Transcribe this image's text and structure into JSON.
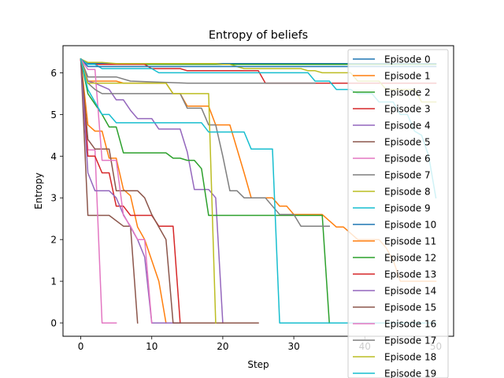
{
  "chart_data": {
    "type": "line",
    "title": "Entropy of beliefs",
    "xlabel": "Step",
    "ylabel": "Entropy",
    "xlim": [
      -2.5,
      52.5
    ],
    "ylim": [
      -0.32,
      6.65
    ],
    "xticks": [
      0,
      10,
      20,
      30,
      40,
      50
    ],
    "yticks": [
      0,
      1,
      2,
      3,
      4,
      5,
      6
    ],
    "grid": false,
    "legend_position": "right",
    "series": [
      {
        "name": "Episode 0",
        "color": "#1f77b4",
        "x": [
          0,
          1,
          50
        ],
        "y": [
          6.33,
          6.22,
          6.22
        ]
      },
      {
        "name": "Episode 1",
        "color": "#ff7f0e",
        "x": [
          0,
          1,
          5,
          6,
          12,
          13,
          14,
          15,
          16,
          17,
          18,
          19,
          20,
          21,
          23,
          24,
          26,
          27,
          28,
          29,
          30,
          31,
          33,
          34,
          36,
          37,
          39,
          40,
          41,
          42,
          43,
          44,
          45,
          46,
          47,
          48,
          49,
          50
        ],
        "y": [
          6.33,
          5.8,
          5.8,
          5.75,
          5.75,
          5.5,
          5.5,
          5.2,
          5.2,
          5.2,
          5.2,
          4.75,
          4.75,
          4.75,
          3.6,
          3.0,
          3.0,
          3.0,
          2.8,
          2.8,
          2.6,
          2.6,
          2.6,
          2.6,
          2.3,
          2.3,
          2.0,
          2.0,
          2.0,
          2.0,
          1.8,
          1.5,
          1.0,
          1.0,
          1.0,
          1.0,
          1.0,
          1.0
        ]
      },
      {
        "name": "Episode 2",
        "color": "#2ca02c",
        "x": [
          0,
          1,
          50
        ],
        "y": [
          6.33,
          6.2,
          6.2
        ]
      },
      {
        "name": "Episode 3",
        "color": "#d62728",
        "x": [
          0,
          1,
          9,
          10,
          14,
          15,
          16,
          17,
          18,
          19,
          20,
          21,
          22,
          23,
          24,
          25,
          26,
          27,
          28,
          50
        ],
        "y": [
          6.33,
          6.2,
          6.2,
          6.1,
          6.1,
          6.05,
          6.05,
          6.05,
          6.05,
          6.05,
          6.05,
          6.05,
          6.05,
          6.05,
          6.05,
          6.05,
          5.75,
          5.75,
          5.75,
          5.75
        ]
      },
      {
        "name": "Episode 4",
        "color": "#9467bd",
        "x": [
          0,
          1,
          2,
          4,
          5,
          6,
          7,
          8,
          9,
          10,
          11,
          14,
          15,
          16,
          17,
          18,
          19,
          20
        ],
        "y": [
          6.33,
          5.8,
          5.75,
          5.6,
          5.35,
          5.35,
          5.1,
          4.9,
          4.9,
          4.9,
          4.65,
          4.65,
          4.1,
          3.2,
          3.2,
          3.2,
          3.0,
          0.0
        ]
      },
      {
        "name": "Episode 5",
        "color": "#8c564b",
        "x": [
          0,
          1,
          4,
          6,
          7,
          8
        ],
        "y": [
          6.33,
          2.58,
          2.58,
          2.32,
          2.32,
          0.0
        ]
      },
      {
        "name": "Episode 6",
        "color": "#e377c2",
        "x": [
          0,
          1,
          2,
          3,
          4,
          5
        ],
        "y": [
          6.33,
          4.15,
          4.15,
          0.0,
          0.0,
          0.0
        ]
      },
      {
        "name": "Episode 7",
        "color": "#7f7f7f",
        "x": [
          0,
          1,
          3,
          5,
          7,
          15,
          16,
          17,
          18,
          19,
          20,
          21,
          22,
          23,
          24,
          25,
          26,
          27,
          28,
          29,
          30,
          31,
          32,
          33
        ],
        "y": [
          6.33,
          5.9,
          5.9,
          5.9,
          5.8,
          5.75,
          5.75,
          5.75,
          5.75,
          5.75,
          5.75,
          5.75,
          5.75,
          5.75,
          5.75,
          5.75,
          5.75,
          5.75,
          5.75,
          5.75,
          5.75,
          5.75,
          5.75,
          5.75
        ]
      },
      {
        "name": "Episode 8",
        "color": "#bcbd22",
        "x": [
          0,
          1,
          3,
          5,
          10,
          15,
          18,
          19,
          20,
          21,
          22,
          23,
          24,
          25,
          26,
          27,
          28,
          29,
          30,
          31,
          32,
          33,
          34,
          35,
          36,
          37,
          38,
          39,
          40,
          41,
          42,
          43,
          44,
          45,
          46,
          47,
          48,
          49,
          50
        ],
        "y": [
          6.33,
          6.25,
          6.25,
          6.22,
          6.22,
          6.22,
          6.22,
          6.22,
          6.2,
          6.2,
          6.15,
          6.1,
          6.1,
          6.1,
          6.1,
          6.1,
          6.1,
          6.1,
          6.1,
          6.1,
          6.05,
          6.05,
          6.0,
          6.0,
          6.0,
          6.0,
          6.0,
          5.8,
          5.8,
          5.8,
          5.8,
          5.6,
          5.6,
          5.6,
          5.6,
          5.6,
          5.3,
          5.3,
          5.3
        ]
      },
      {
        "name": "Episode 9",
        "color": "#17becf",
        "x": [
          0,
          1,
          2,
          3,
          4,
          5,
          6,
          7,
          8,
          9,
          10,
          11,
          12,
          13,
          14,
          15,
          16,
          17,
          18,
          19,
          20,
          21,
          22,
          23,
          24,
          25,
          26,
          27,
          28,
          29,
          30,
          31,
          32,
          33,
          34,
          35,
          36,
          37,
          38,
          39,
          40,
          41,
          42,
          43,
          44,
          45,
          46,
          47,
          48,
          49,
          50
        ],
        "y": [
          6.33,
          6.2,
          6.2,
          6.1,
          6.1,
          6.1,
          6.1,
          6.1,
          6.1,
          6.1,
          6.1,
          6.0,
          6.0,
          6.0,
          6.0,
          6.0,
          6.0,
          6.0,
          6.0,
          6.0,
          6.0,
          6.0,
          6.0,
          6.0,
          6.0,
          6.0,
          6.0,
          6.0,
          6.0,
          6.0,
          6.0,
          6.0,
          6.0,
          5.8,
          5.8,
          5.8,
          5.6,
          5.6,
          5.6,
          5.5,
          5.5,
          5.5,
          5.3,
          5.3,
          5.3,
          5.0,
          5.0,
          4.6,
          4.5,
          4.0,
          3.0
        ]
      },
      {
        "name": "Episode 10",
        "color": "#1f77b4",
        "x": [
          0,
          1,
          50
        ],
        "y": [
          6.33,
          6.15,
          6.15
        ]
      },
      {
        "name": "Episode 11",
        "color": "#ff7f0e",
        "x": [
          0,
          1,
          2,
          3,
          4,
          5,
          6,
          7,
          8,
          9,
          10,
          11,
          12
        ],
        "y": [
          6.33,
          4.75,
          4.6,
          4.6,
          3.95,
          3.95,
          3.2,
          3.05,
          2.3,
          2.0,
          1.5,
          1.0,
          0.0
        ]
      },
      {
        "name": "Episode 12",
        "color": "#2ca02c",
        "x": [
          0,
          1,
          3,
          4,
          5,
          6,
          12,
          13,
          14,
          15,
          16,
          17,
          18,
          19,
          20,
          21,
          22,
          23,
          24,
          25,
          26,
          27,
          28,
          29,
          30,
          31,
          32,
          33,
          34,
          35
        ],
        "y": [
          6.33,
          5.5,
          5.0,
          4.7,
          4.7,
          4.08,
          4.08,
          3.95,
          3.95,
          3.9,
          3.9,
          3.7,
          2.58,
          2.58,
          2.58,
          2.58,
          2.58,
          2.58,
          2.58,
          2.58,
          2.58,
          2.58,
          2.58,
          2.58,
          2.58,
          2.58,
          2.58,
          2.58,
          2.58,
          0.0
        ]
      },
      {
        "name": "Episode 13",
        "color": "#d62728",
        "x": [
          0,
          1,
          2,
          3,
          4,
          5,
          6,
          7,
          8,
          9,
          10,
          11,
          12,
          13,
          14
        ],
        "y": [
          6.33,
          4.0,
          4.0,
          3.6,
          3.6,
          2.8,
          2.8,
          2.58,
          2.58,
          2.58,
          2.58,
          2.32,
          2.32,
          2.32,
          0.0
        ]
      },
      {
        "name": "Episode 14",
        "color": "#9467bd",
        "x": [
          0,
          1,
          2,
          3,
          4,
          5,
          6,
          7,
          8,
          9,
          10,
          11,
          12,
          13,
          14
        ],
        "y": [
          6.33,
          3.6,
          3.17,
          3.17,
          3.17,
          3.0,
          2.6,
          2.3,
          2.0,
          1.58,
          0.0,
          0.0,
          0.0,
          0.0,
          0.0
        ]
      },
      {
        "name": "Episode 15",
        "color": "#8c564b",
        "x": [
          0,
          1,
          2,
          3,
          4,
          5,
          6,
          7,
          8,
          9,
          10,
          11,
          12,
          13,
          14,
          15,
          16,
          17,
          18,
          19,
          20,
          21,
          22,
          23,
          24,
          25
        ],
        "y": [
          6.33,
          4.4,
          4.17,
          4.17,
          4.17,
          3.17,
          3.17,
          3.17,
          3.17,
          3.0,
          2.6,
          2.3,
          2.0,
          0.0,
          0.0,
          0.0,
          0.0,
          0.0,
          0.0,
          0.0,
          0.0,
          0.0,
          0.0,
          0.0,
          0.0,
          0.0
        ]
      },
      {
        "name": "Episode 16",
        "color": "#e377c2",
        "x": [
          0,
          1,
          2,
          3,
          4,
          5,
          6,
          7,
          8,
          9,
          10
        ],
        "y": [
          6.33,
          6.08,
          6.08,
          3.9,
          3.9,
          3.9,
          2.58,
          2.32,
          2.0,
          2.0,
          0.0
        ]
      },
      {
        "name": "Episode 17",
        "color": "#7f7f7f",
        "x": [
          0,
          1,
          2,
          3,
          4,
          5,
          6,
          7,
          8,
          9,
          10,
          11,
          12,
          13,
          14,
          15,
          16,
          17,
          18,
          19,
          20,
          21,
          22,
          23,
          24,
          25,
          26,
          27,
          28,
          29,
          30,
          31,
          32,
          33,
          34,
          35
        ],
        "y": [
          6.33,
          5.75,
          5.6,
          5.5,
          5.5,
          5.5,
          5.5,
          5.5,
          5.5,
          5.5,
          5.5,
          5.5,
          5.5,
          5.5,
          5.5,
          5.15,
          5.15,
          5.15,
          4.75,
          4.75,
          4.0,
          3.17,
          3.17,
          3.0,
          3.0,
          3.0,
          3.0,
          2.8,
          2.6,
          2.6,
          2.6,
          2.32,
          2.32,
          2.32,
          2.32,
          2.32
        ]
      },
      {
        "name": "Episode 18",
        "color": "#bcbd22",
        "x": [
          0,
          1,
          2,
          3,
          4,
          5,
          6,
          7,
          8,
          9,
          10,
          11,
          12,
          13,
          14,
          15,
          16,
          17,
          18,
          19
        ],
        "y": [
          6.33,
          5.75,
          5.75,
          5.75,
          5.75,
          5.75,
          5.75,
          5.75,
          5.75,
          5.75,
          5.75,
          5.75,
          5.75,
          5.5,
          5.5,
          5.5,
          5.5,
          5.5,
          5.5,
          0.0
        ]
      },
      {
        "name": "Episode 19",
        "color": "#17becf",
        "x": [
          0,
          1,
          2,
          3,
          4,
          5,
          6,
          7,
          8,
          9,
          10,
          11,
          12,
          13,
          14,
          15,
          16,
          17,
          18,
          19,
          20,
          21,
          22,
          23,
          24,
          25,
          26,
          27,
          28,
          29,
          30,
          31,
          32,
          33,
          34,
          35,
          36,
          37,
          38,
          39,
          40,
          41,
          42,
          43,
          44,
          45,
          46,
          47,
          48,
          49,
          50
        ],
        "y": [
          6.33,
          5.6,
          5.3,
          5.0,
          5.0,
          4.8,
          4.8,
          4.8,
          4.8,
          4.8,
          4.8,
          4.8,
          4.8,
          4.8,
          4.8,
          4.8,
          4.8,
          4.8,
          4.58,
          4.58,
          4.58,
          4.58,
          4.58,
          4.58,
          4.17,
          4.17,
          4.17,
          4.17,
          0.0,
          0.0,
          0.0,
          0.0,
          0.0,
          0.0,
          0.0,
          0.0,
          0.0,
          0.0,
          0.0,
          0.0,
          0.0,
          0.0,
          0.0,
          0.0,
          0.0,
          0.0,
          0.0,
          0.0,
          0.0,
          0.0,
          0.0
        ]
      }
    ]
  }
}
